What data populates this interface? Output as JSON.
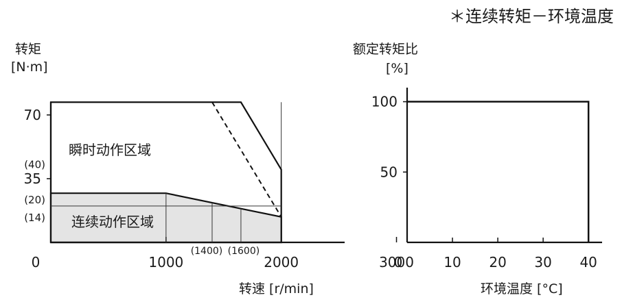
{
  "title": "＊连续转矩－环境温度",
  "chart_data": [
    {
      "type": "area",
      "ylabel_line1": "转矩",
      "ylabel_line2": "[N·m]",
      "xlabel": "转速 [r/min]",
      "xlim": [
        0,
        2550
      ],
      "ylim": [
        0,
        85
      ],
      "x_origin_label": "0",
      "x_ticks": [
        {
          "value": 1000,
          "label": "1000"
        },
        {
          "value": 2000,
          "label": "2000"
        },
        {
          "value": 3000,
          "label": "3000"
        }
      ],
      "x_ticks_small": [
        {
          "value": 1400,
          "label": "(1400)"
        },
        {
          "value": 1600,
          "label": "(1600)"
        }
      ],
      "y_origin_label": "0",
      "y_ticks": [
        {
          "value": 35,
          "label": "35"
        },
        {
          "value": 70,
          "label": "70"
        }
      ],
      "y_ticks_small": [
        {
          "value": 40,
          "label": "(40)"
        },
        {
          "value": 20,
          "label": "(20)"
        },
        {
          "value": 14,
          "label": "(14)"
        }
      ],
      "regions": [
        {
          "name": "瞬时动作区域",
          "points": [
            [
              0,
              0
            ],
            [
              0,
              77
            ],
            [
              1650,
              77
            ],
            [
              2000,
              40
            ],
            [
              2000,
              0
            ]
          ],
          "fill": "#ffffff"
        },
        {
          "name": "连续动作区域",
          "points": [
            [
              0,
              0
            ],
            [
              0,
              27
            ],
            [
              1000,
              27
            ],
            [
              2000,
              14
            ],
            [
              2000,
              0
            ]
          ],
          "fill": "#e4e4e4"
        }
      ],
      "dashed_line": [
        [
          1400,
          77
        ],
        [
          2000,
          14
        ]
      ],
      "gridlines_x": [
        1000,
        1400,
        1650,
        2000
      ],
      "gridlines_y": [
        40,
        20,
        14
      ]
    },
    {
      "type": "line",
      "ylabel_line1": "额定转矩比",
      "ylabel_line2": "[%]",
      "xlabel": "环境温度 [°C]",
      "xlim": [
        0,
        43
      ],
      "ylim": [
        0,
        110
      ],
      "x_ticks": [
        {
          "value": 0,
          "label": "0"
        },
        {
          "value": 10,
          "label": "10"
        },
        {
          "value": 20,
          "label": "20"
        },
        {
          "value": 30,
          "label": "30"
        },
        {
          "value": 40,
          "label": "40"
        }
      ],
      "y_ticks": [
        {
          "value": 50,
          "label": "50"
        },
        {
          "value": 100,
          "label": "100"
        }
      ],
      "series": [
        {
          "x": [
            0,
            40,
            40
          ],
          "y": [
            100,
            100,
            0
          ]
        }
      ]
    }
  ]
}
